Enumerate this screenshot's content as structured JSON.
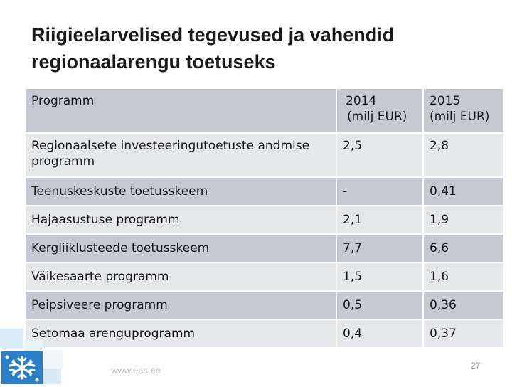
{
  "slide": {
    "title": "Riigieelarvelised tegevused ja vahendid regionaalarengu toetuseks",
    "footer_url": "www.eas.ee",
    "page_number": "27",
    "colors": {
      "row_dark": "#c6c9d2",
      "row_light": "#e6e7eb",
      "logo_blue": "#2a7fc7"
    }
  },
  "table": {
    "header": {
      "program": "Programm",
      "y2014": "2014",
      "y2014_unit": "(milj EUR)",
      "y2015": "2015",
      "y2015_unit": "(milj EUR)"
    },
    "rows": [
      {
        "program": "Regionaalsete investeeringutoetuste andmise programm",
        "y2014": "2,5",
        "y2015": "2,8"
      },
      {
        "program": "Teenuskeskuste toetusskeem",
        "y2014": "-",
        "y2015": "0,41"
      },
      {
        "program": "Hajaasustuse programm",
        "y2014": "2,1",
        "y2015": "1,9"
      },
      {
        "program": "Kergliiklusteede toetusskeem",
        "y2014": "7,7",
        "y2015": "6,6"
      },
      {
        "program": "Väikesaarte programm",
        "y2014": "1,5",
        "y2015": "1,6"
      },
      {
        "program": "Peipsiveere programm",
        "y2014": "0,5",
        "y2015": "0,36"
      },
      {
        "program": "Setomaa arenguprogramm",
        "y2014": "0,4",
        "y2015": "0,37"
      }
    ]
  }
}
